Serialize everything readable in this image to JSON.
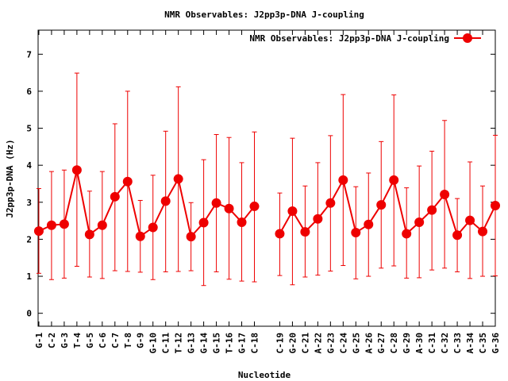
{
  "chart_data": {
    "type": "line",
    "title": "NMR Observables: J2pp3p-DNA J-coupling",
    "xlabel": "Nucleotide",
    "ylabel": "J2pp3p-DNA (Hz)",
    "ylim": [
      -0.35,
      7.65
    ],
    "yticks": [
      0,
      1,
      2,
      3,
      4,
      5,
      6,
      7
    ],
    "legend": {
      "position": "top-right",
      "label": "NMR Observables: J2pp3p-DNA J-coupling"
    },
    "grid": false,
    "series_color": "#ee0000",
    "categories": [
      "G-1",
      "C-2",
      "G-3",
      "T-4",
      "G-5",
      "C-6",
      "C-7",
      "T-8",
      "G-9",
      "G-10",
      "C-11",
      "T-12",
      "G-13",
      "G-14",
      "G-15",
      "T-16",
      "G-17",
      "C-18",
      "C-19",
      "G-20",
      "C-21",
      "A-22",
      "G-23",
      "C-24",
      "G-25",
      "A-26",
      "G-27",
      "C-28",
      "G-29",
      "A-30",
      "C-31",
      "C-32",
      "C-33",
      "A-34",
      "C-35",
      "G-36"
    ],
    "x": [
      1,
      2,
      3,
      4,
      5,
      6,
      7,
      8,
      9,
      10,
      11,
      12,
      13,
      14,
      15,
      16,
      17,
      18,
      20,
      21,
      22,
      23,
      24,
      25,
      26,
      27,
      28,
      29,
      30,
      31,
      32,
      33,
      34,
      35,
      36,
      37
    ],
    "series": [
      {
        "values": [
          2.22,
          2.38,
          2.41,
          3.87,
          2.13,
          2.38,
          3.15,
          3.56,
          2.08,
          2.32,
          3.03,
          3.63,
          2.07,
          2.45,
          2.98,
          2.83,
          2.46,
          2.89,
          2.15,
          2.76,
          2.2,
          2.55,
          2.98,
          3.6,
          2.18,
          2.4,
          2.93,
          3.6,
          2.15,
          2.46,
          2.79,
          3.21,
          2.11,
          2.51,
          2.21,
          2.91
        ],
        "err_low": [
          1.08,
          0.91,
          0.95,
          1.27,
          0.98,
          0.94,
          1.15,
          1.13,
          1.11,
          0.91,
          1.12,
          1.13,
          1.15,
          0.75,
          1.12,
          0.92,
          0.87,
          0.85,
          1.02,
          0.77,
          0.98,
          1.03,
          1.14,
          1.29,
          0.93,
          1.0,
          1.22,
          1.28,
          0.95,
          0.96,
          1.17,
          1.22,
          1.12,
          0.94,
          1.0,
          1.01
        ],
        "err_high": [
          3.37,
          3.83,
          3.87,
          6.49,
          3.3,
          3.83,
          5.12,
          6.0,
          3.05,
          3.73,
          4.92,
          6.12,
          2.99,
          4.15,
          4.83,
          4.75,
          4.07,
          4.9,
          3.25,
          4.73,
          3.44,
          4.07,
          4.8,
          5.91,
          3.42,
          3.79,
          4.64,
          5.9,
          3.39,
          3.98,
          4.38,
          5.21,
          3.1,
          4.09,
          3.44,
          4.81
        ]
      }
    ]
  }
}
